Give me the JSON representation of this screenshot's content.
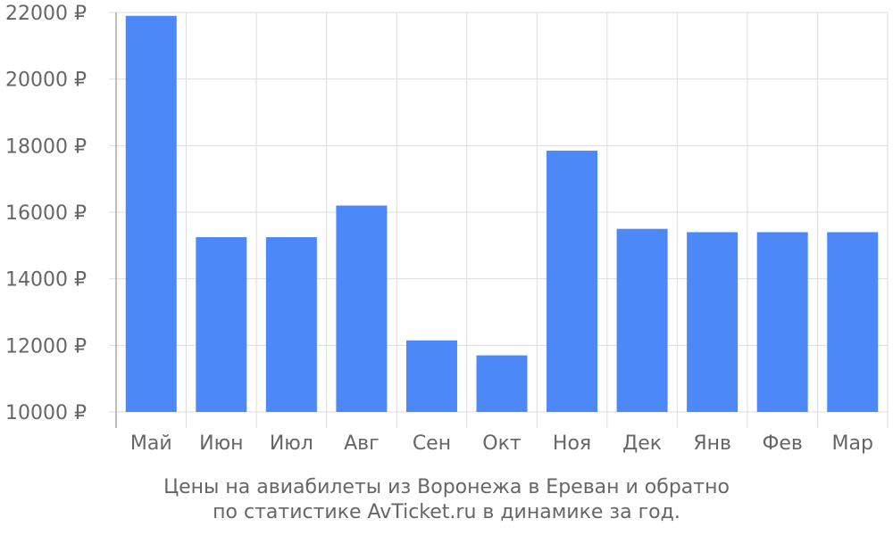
{
  "chart_data": {
    "type": "bar",
    "categories": [
      "Май",
      "Июн",
      "Июл",
      "Авг",
      "Сен",
      "Окт",
      "Ноя",
      "Дек",
      "Янв",
      "Фев",
      "Мар"
    ],
    "values": [
      21900,
      15250,
      15250,
      16200,
      12150,
      11700,
      17850,
      15500,
      15400,
      15400,
      15400
    ],
    "ylim": [
      10000,
      22000
    ],
    "yticks": [
      10000,
      12000,
      14000,
      16000,
      18000,
      20000,
      22000
    ],
    "ytick_labels": [
      "10000 ₽",
      "12000 ₽",
      "14000 ₽",
      "16000 ₽",
      "18000 ₽",
      "20000 ₽",
      "22000 ₽"
    ],
    "grid": true,
    "bar_color": "#4d88f9",
    "grid_color": "#dddddd",
    "text_color": "#666666"
  },
  "caption": {
    "line1": "Цены на авиабилеты из Воронежа в Ереван и обратно",
    "line2": "по статистике AvTicket.ru в динамике за год."
  }
}
